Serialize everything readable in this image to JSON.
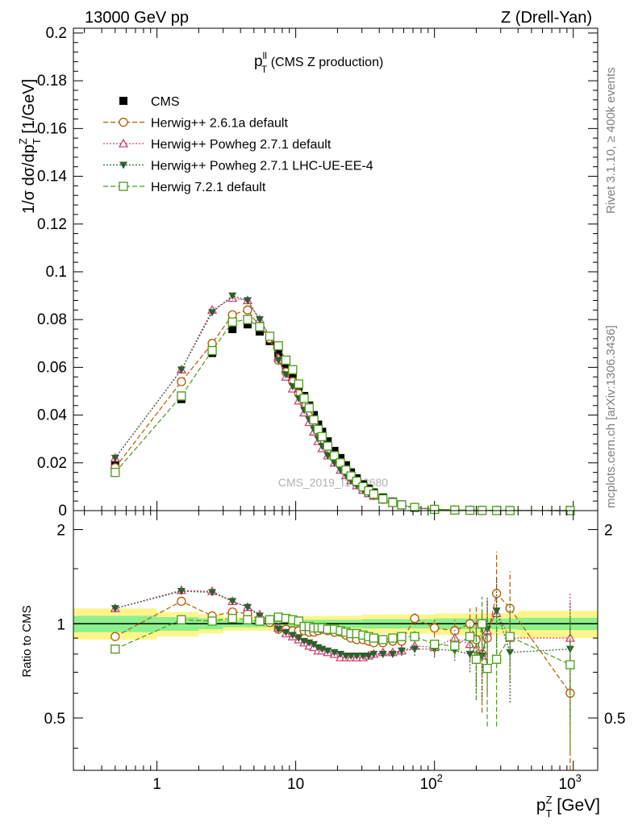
{
  "header": {
    "left": "13000 GeV pp",
    "right": "Z (Drell-Yan)",
    "side_top": "Rivet 3.1.10, ≥ 400k events",
    "side_bottom": "mcplots.cern.ch [arXiv:1306.3436]",
    "watermark": "CMS_2019_I1753680"
  },
  "chart_data": [
    {
      "type": "scatter",
      "panel": "main",
      "title_main": "p",
      "title_sup": "ll",
      "title_sub": "T",
      "title_rest": " (CMS Z production)",
      "ylabel_parts": [
        "1/σ dσ/dp",
        "Z",
        "T",
        " [1/GeV]"
      ],
      "xscale": "log",
      "xlim": [
        0.25,
        1500
      ],
      "ylim": [
        0,
        0.202
      ],
      "yticks": [
        0,
        0.02,
        0.04,
        0.06,
        0.08,
        0.1,
        0.12,
        0.14,
        0.16,
        0.18,
        0.2
      ],
      "ytick_labels": [
        "0",
        "0.02",
        "0.04",
        "0.06",
        "0.08",
        "0.1",
        "0.12",
        "0.14",
        "0.16",
        "0.18",
        "0.2"
      ],
      "x": [
        0.5,
        1.5,
        2.5,
        3.5,
        4.5,
        5.5,
        6.5,
        7.5,
        8.5,
        9.5,
        10.5,
        11.5,
        12.5,
        13.5,
        14.5,
        15.5,
        17,
        19,
        21,
        23,
        25,
        27.5,
        30.5,
        33.5,
        36.5,
        42.5,
        50,
        58,
        72,
        100,
        140,
        180,
        220,
        280,
        350,
        950
      ],
      "series": [
        {
          "name": "CMS",
          "color": "#000000",
          "marker": "filled-square",
          "line": "none",
          "values": [
            0.0195,
            0.0467,
            0.066,
            0.076,
            0.078,
            0.075,
            0.071,
            0.066,
            0.061,
            0.057,
            0.052,
            0.048,
            0.044,
            0.04,
            0.036,
            0.033,
            0.029,
            0.025,
            0.022,
            0.019,
            0.016,
            0.0135,
            0.011,
            0.0092,
            0.0076,
            0.0055,
            0.0038,
            0.0026,
            0.0014,
            0.0006,
            0.00027,
            0.00015,
            0.0001,
            6e-05,
            4e-05,
            2e-06
          ]
        },
        {
          "name": "Herwig++ 2.6.1a default",
          "color": "#b35a00",
          "marker": "open-circle",
          "line": "dashed",
          "values": [
            0.018,
            0.054,
            0.07,
            0.082,
            0.084,
            0.077,
            0.072,
            0.063,
            0.058,
            0.054,
            0.049,
            0.045,
            0.041,
            0.037,
            0.034,
            0.031,
            0.027,
            0.023,
            0.02,
            0.017,
            0.0145,
            0.012,
            0.0099,
            0.0081,
            0.0066,
            0.0048,
            0.0034,
            0.0023,
            0.0014,
            0.00058,
            0.00026,
            0.00015,
            9e-05,
            7.5e-05,
            4.5e-05,
            1.2e-06
          ]
        },
        {
          "name": "Herwig++ Powheg 2.7.1 default",
          "color": "#d0407a",
          "marker": "open-triangle",
          "line": "dotted",
          "values": [
            0.022,
            0.059,
            0.084,
            0.089,
            0.088,
            0.08,
            0.073,
            0.064,
            0.056,
            0.051,
            0.046,
            0.041,
            0.037,
            0.033,
            0.029,
            0.026,
            0.023,
            0.02,
            0.017,
            0.0148,
            0.0126,
            0.0105,
            0.0086,
            0.0072,
            0.0061,
            0.0045,
            0.0031,
            0.0021,
            0.0012,
            0.0005,
            0.00024,
            0.00013,
            8e-05,
            5.5e-05,
            3.5e-05,
            1.8e-06
          ]
        },
        {
          "name": "Herwig++ Powheg 2.7.1 LHC-UE-EE-4",
          "color": "#2f5f2f",
          "marker": "filled-triangle-down",
          "line": "dotted",
          "values": [
            0.022,
            0.059,
            0.083,
            0.09,
            0.088,
            0.08,
            0.073,
            0.063,
            0.057,
            0.052,
            0.047,
            0.042,
            0.038,
            0.034,
            0.03,
            0.027,
            0.023,
            0.02,
            0.017,
            0.0148,
            0.0125,
            0.0105,
            0.0086,
            0.0072,
            0.0061,
            0.0044,
            0.0031,
            0.0021,
            0.0012,
            0.0005,
            0.00023,
            0.00012,
            8e-05,
            5e-05,
            3e-05,
            1.7e-06
          ]
        },
        {
          "name": "Herwig 7.2.1 default",
          "color": "#4a9a1a",
          "marker": "open-square",
          "line": "dashed",
          "values": [
            0.016,
            0.048,
            0.067,
            0.079,
            0.08,
            0.077,
            0.073,
            0.069,
            0.063,
            0.059,
            0.053,
            0.047,
            0.043,
            0.038,
            0.034,
            0.031,
            0.027,
            0.023,
            0.02,
            0.017,
            0.0145,
            0.0123,
            0.01,
            0.0083,
            0.0069,
            0.0049,
            0.0034,
            0.0024,
            0.0013,
            0.00052,
            0.00023,
            0.00014,
            8e-05,
            4.6e-05,
            4e-05,
            1.5e-06
          ]
        }
      ]
    },
    {
      "type": "scatter",
      "panel": "ratio",
      "ylabel": "Ratio to CMS",
      "xlabel_main": "p",
      "xlabel_sup": "Z",
      "xlabel_sub": "T",
      "xlabel_rest": " [GeV]",
      "xscale": "log",
      "xlim": [
        0.25,
        1500
      ],
      "xtick_labels": [
        "1",
        "10",
        "10",
        "10"
      ],
      "xtick_exps": [
        "",
        "",
        "2",
        "3"
      ],
      "yscale": "log",
      "ylim": [
        0.34,
        2.3
      ],
      "ytick_labels": [
        "0.5",
        "1",
        "2"
      ],
      "band_inner_color": "#8cf08c",
      "band_outer_color": "#fff58c",
      "band": [
        {
          "x": [
            0.25,
            1
          ],
          "inner": [
            0.94,
            1.06
          ],
          "outer": [
            0.89,
            1.12
          ]
        },
        {
          "x": [
            1,
            2
          ],
          "inner": [
            0.95,
            1.05
          ],
          "outer": [
            0.91,
            1.09
          ]
        },
        {
          "x": [
            2,
            3
          ],
          "inner": [
            0.96,
            1.04
          ],
          "outer": [
            0.93,
            1.07
          ]
        },
        {
          "x": [
            3,
            10
          ],
          "inner": [
            0.975,
            1.025
          ],
          "outer": [
            0.95,
            1.05
          ]
        },
        {
          "x": [
            10,
            30
          ],
          "inner": [
            0.97,
            1.03
          ],
          "outer": [
            0.94,
            1.06
          ]
        },
        {
          "x": [
            30,
            100
          ],
          "inner": [
            0.965,
            1.035
          ],
          "outer": [
            0.93,
            1.07
          ]
        },
        {
          "x": [
            100,
            400
          ],
          "inner": [
            0.96,
            1.04
          ],
          "outer": [
            0.92,
            1.08
          ]
        },
        {
          "x": [
            400,
            1500
          ],
          "inner": [
            0.955,
            1.045
          ],
          "outer": [
            0.9,
            1.1
          ]
        }
      ],
      "x": [
        0.5,
        1.5,
        2.5,
        3.5,
        4.5,
        5.5,
        6.5,
        7.5,
        8.5,
        9.5,
        10.5,
        11.5,
        12.5,
        13.5,
        14.5,
        15.5,
        17,
        19,
        21,
        23,
        25,
        27.5,
        30.5,
        33.5,
        36.5,
        42.5,
        50,
        58,
        72,
        100,
        140,
        180,
        200,
        220,
        240,
        280,
        350,
        950
      ],
      "series": [
        {
          "name": "Herwig++ 2.6.1a default",
          "color": "#b35a00",
          "marker": "open-circle",
          "line": "dashed",
          "values": [
            0.91,
            1.18,
            1.06,
            1.09,
            1.08,
            1.03,
            1.01,
            0.96,
            0.96,
            0.95,
            0.95,
            0.95,
            0.94,
            0.94,
            0.95,
            0.96,
            0.95,
            0.94,
            0.94,
            0.92,
            0.9,
            0.89,
            0.89,
            0.88,
            0.87,
            0.87,
            0.88,
            0.88,
            1.04,
            0.97,
            0.95,
            1.0,
            0.89,
            0.8,
            0.9,
            1.25,
            1.12,
            0.6
          ],
          "err": [
            0.02,
            0.02,
            0.02,
            0.02,
            0.02,
            0.02,
            0.02,
            0.02,
            0.02,
            0.02,
            0.02,
            0.02,
            0.02,
            0.02,
            0.02,
            0.02,
            0.02,
            0.02,
            0.02,
            0.02,
            0.02,
            0.02,
            0.03,
            0.03,
            0.03,
            0.03,
            0.03,
            0.04,
            0.05,
            0.06,
            0.08,
            0.12,
            0.25,
            0.28,
            0.3,
            0.45,
            0.35,
            0.45
          ]
        },
        {
          "name": "Herwig++ Powheg 2.7.1 default",
          "color": "#d0407a",
          "marker": "open-triangle",
          "line": "dotted",
          "values": [
            1.12,
            1.28,
            1.27,
            1.18,
            1.13,
            1.07,
            1.03,
            0.97,
            0.93,
            0.91,
            0.89,
            0.87,
            0.85,
            0.84,
            0.82,
            0.82,
            0.81,
            0.8,
            0.78,
            0.78,
            0.78,
            0.78,
            0.78,
            0.79,
            0.8,
            0.81,
            0.81,
            0.82,
            0.85,
            0.84,
            0.9,
            0.86,
            0.83,
            0.79,
            0.95,
            1.08,
            0.9,
            0.9
          ],
          "err": [
            0.01,
            0.01,
            0.01,
            0.01,
            0.01,
            0.01,
            0.01,
            0.01,
            0.01,
            0.01,
            0.01,
            0.01,
            0.01,
            0.01,
            0.01,
            0.01,
            0.01,
            0.01,
            0.01,
            0.01,
            0.01,
            0.01,
            0.01,
            0.02,
            0.02,
            0.02,
            0.02,
            0.03,
            0.04,
            0.05,
            0.06,
            0.1,
            0.2,
            0.22,
            0.25,
            0.3,
            0.25,
            0.35
          ]
        },
        {
          "name": "Herwig++ Powheg 2.7.1 LHC-UE-EE-4",
          "color": "#2f5f2f",
          "marker": "filled-triangle-down",
          "line": "dotted",
          "values": [
            1.12,
            1.27,
            1.26,
            1.18,
            1.13,
            1.06,
            1.02,
            0.96,
            0.94,
            0.92,
            0.9,
            0.88,
            0.87,
            0.86,
            0.84,
            0.83,
            0.82,
            0.81,
            0.8,
            0.79,
            0.79,
            0.79,
            0.79,
            0.79,
            0.8,
            0.8,
            0.8,
            0.82,
            0.83,
            0.83,
            0.82,
            0.8,
            0.77,
            0.79,
            0.96,
            1.1,
            0.81,
            0.83
          ],
          "err": [
            0.01,
            0.01,
            0.01,
            0.01,
            0.01,
            0.01,
            0.01,
            0.01,
            0.01,
            0.01,
            0.01,
            0.01,
            0.01,
            0.01,
            0.01,
            0.01,
            0.01,
            0.01,
            0.01,
            0.01,
            0.01,
            0.01,
            0.01,
            0.02,
            0.02,
            0.02,
            0.02,
            0.03,
            0.04,
            0.05,
            0.06,
            0.1,
            0.2,
            0.22,
            0.25,
            0.3,
            0.25,
            0.35
          ]
        },
        {
          "name": "Herwig 7.2.1 default",
          "color": "#4a9a1a",
          "marker": "open-square",
          "line": "dashed",
          "values": [
            0.83,
            1.03,
            1.02,
            1.04,
            1.03,
            1.02,
            1.03,
            1.05,
            1.04,
            1.03,
            1.02,
            0.98,
            0.98,
            0.97,
            0.97,
            0.97,
            0.96,
            0.96,
            0.95,
            0.94,
            0.93,
            0.93,
            0.92,
            0.91,
            0.9,
            0.89,
            0.9,
            0.91,
            0.91,
            0.86,
            0.85,
            0.91,
            0.77,
            1.0,
            0.72,
            0.77,
            0.91,
            0.74
          ],
          "err": [
            0.01,
            0.01,
            0.01,
            0.01,
            0.01,
            0.01,
            0.01,
            0.01,
            0.01,
            0.01,
            0.01,
            0.01,
            0.01,
            0.01,
            0.01,
            0.01,
            0.01,
            0.01,
            0.01,
            0.01,
            0.01,
            0.01,
            0.01,
            0.02,
            0.02,
            0.02,
            0.02,
            0.03,
            0.04,
            0.05,
            0.06,
            0.1,
            0.2,
            0.22,
            0.25,
            0.3,
            0.25,
            0.35
          ]
        }
      ]
    }
  ]
}
